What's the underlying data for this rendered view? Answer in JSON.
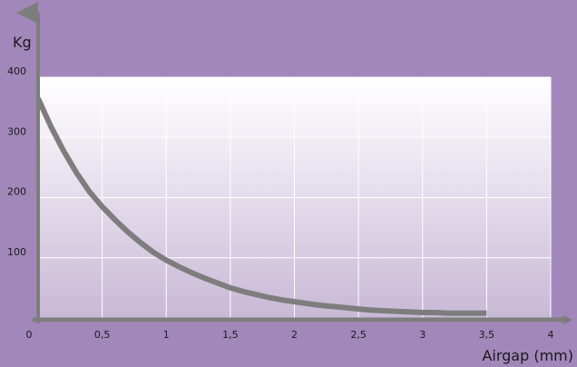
{
  "chart_data": {
    "type": "line",
    "title": "",
    "xlabel": "Airgap (mm)",
    "ylabel": "Kg",
    "xlim": [
      0,
      4
    ],
    "ylim": [
      0,
      400
    ],
    "x_ticks": [
      0,
      0.5,
      1,
      1.5,
      2,
      2.5,
      3,
      3.5,
      4
    ],
    "x_tick_labels": [
      "0",
      "0,5",
      "1",
      "1,5",
      "2",
      "2,5",
      "3",
      "3,5",
      "4"
    ],
    "y_ticks": [
      100,
      200,
      300,
      400
    ],
    "y_tick_labels": [
      "100",
      "200",
      "300",
      "400"
    ],
    "grid": true,
    "series": [
      {
        "x": [
          0.0,
          0.1,
          0.2,
          0.3,
          0.4,
          0.5,
          0.6,
          0.7,
          0.8,
          0.9,
          1.0,
          1.1,
          1.2,
          1.3,
          1.4,
          1.5,
          1.6,
          1.7,
          1.8,
          1.9,
          2.0,
          2.1,
          2.2,
          2.3,
          2.4,
          2.5,
          2.6,
          2.7,
          2.8,
          2.9,
          3.0,
          3.1,
          3.2,
          3.3,
          3.4,
          3.5
        ],
        "y": [
          365,
          318,
          277,
          241,
          210,
          185,
          163,
          143,
          125,
          109,
          96,
          85,
          75,
          66,
          58,
          50,
          44,
          39,
          34,
          30,
          27,
          24,
          21,
          19,
          17,
          15,
          13,
          12,
          11,
          10,
          9,
          9,
          8,
          8,
          8,
          8
        ]
      }
    ],
    "colors": {
      "background": "#a287bb",
      "plot_top": "#ffffff",
      "plot_bottom": "#c8b9d6",
      "grid": "#ffffff",
      "axis": "#7d7d7d",
      "line": "#7d7d7d"
    }
  }
}
